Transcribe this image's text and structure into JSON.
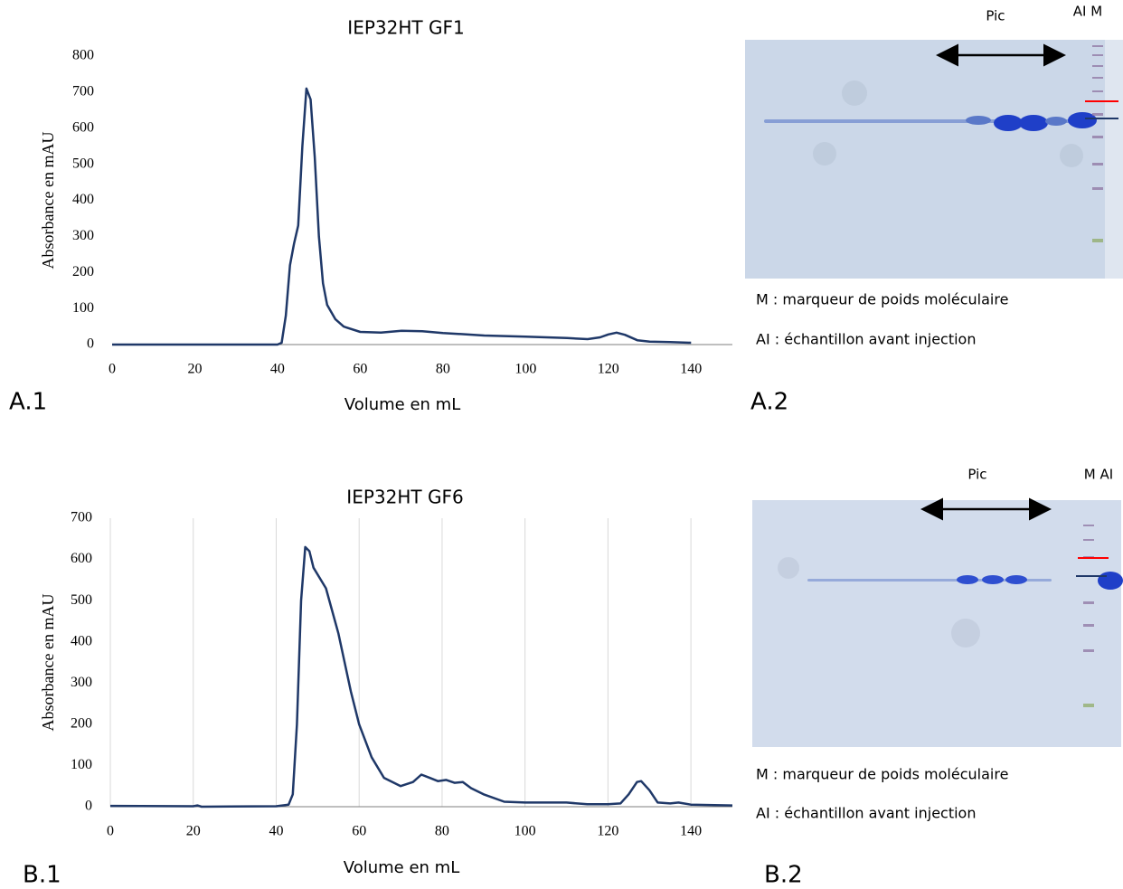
{
  "chart_data": [
    {
      "type": "line",
      "title": "IEP32HT GF1",
      "xlabel": "Volume en mL",
      "ylabel": "Absorbance en mAU",
      "panel_label": "A.1",
      "color": "#1f3868",
      "grid": false,
      "xlim": [
        0,
        150
      ],
      "xticks": [
        0,
        20,
        40,
        60,
        80,
        100,
        120,
        140
      ],
      "ylim": [
        0,
        800
      ],
      "yticks": [
        0,
        100,
        200,
        300,
        400,
        500,
        600,
        700,
        800
      ],
      "x": [
        0,
        40,
        41,
        42,
        43,
        44,
        45,
        46,
        47,
        48,
        49,
        50,
        51,
        52,
        54,
        56,
        60,
        65,
        70,
        75,
        80,
        90,
        100,
        110,
        115,
        118,
        120,
        122,
        124,
        127,
        130,
        135,
        140
      ],
      "values": [
        0,
        0,
        5,
        80,
        220,
        280,
        330,
        550,
        710,
        680,
        520,
        300,
        170,
        110,
        70,
        50,
        35,
        33,
        38,
        37,
        32,
        25,
        22,
        18,
        15,
        20,
        28,
        33,
        27,
        12,
        8,
        7,
        5
      ]
    },
    {
      "type": "line",
      "title": "IEP32HT GF6",
      "xlabel": "Volume en mL",
      "ylabel": "Absorbance en mAU",
      "panel_label": "B.1",
      "color": "#1f3868",
      "grid": true,
      "xlim": [
        0,
        150
      ],
      "xticks": [
        0,
        20,
        40,
        60,
        80,
        100,
        120,
        140
      ],
      "ylim": [
        0,
        700
      ],
      "yticks": [
        0,
        100,
        200,
        300,
        400,
        500,
        600,
        700
      ],
      "x": [
        0,
        20,
        21,
        22,
        40,
        43,
        44,
        45,
        46,
        47,
        48,
        49,
        52,
        55,
        58,
        60,
        63,
        66,
        70,
        73,
        75,
        77,
        79,
        81,
        83,
        85,
        87,
        90,
        95,
        100,
        110,
        115,
        120,
        123,
        125,
        127,
        128,
        130,
        132,
        135,
        137,
        140,
        150
      ],
      "values": [
        2,
        1,
        3,
        0,
        1,
        5,
        30,
        200,
        500,
        630,
        620,
        580,
        530,
        420,
        280,
        200,
        120,
        70,
        50,
        60,
        78,
        70,
        62,
        65,
        58,
        60,
        45,
        30,
        12,
        10,
        10,
        6,
        6,
        8,
        30,
        60,
        62,
        40,
        10,
        8,
        10,
        5,
        3
      ]
    }
  ],
  "gels": [
    {
      "panel_label": "A.2",
      "top_labels": [
        "Pic",
        "AI M"
      ],
      "legend": [
        "M : marqueur de poids moléculaire",
        "AI : échantillon avant injection"
      ]
    },
    {
      "panel_label": "B.2",
      "top_labels": [
        "Pic",
        "M AI"
      ],
      "legend": [
        "M : marqueur de poids moléculaire",
        "AI : échantillon avant injection"
      ]
    }
  ]
}
